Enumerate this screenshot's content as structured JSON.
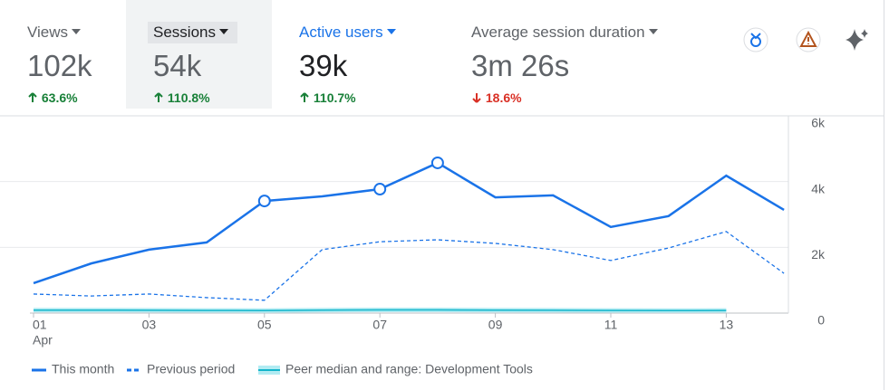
{
  "metrics": [
    {
      "label": "Views",
      "value": "102k",
      "change": "63.6%",
      "direction": "up"
    },
    {
      "label": "Sessions",
      "value": "54k",
      "change": "110.8%",
      "direction": "up"
    },
    {
      "label": "Active users",
      "value": "39k",
      "change": "110.7%",
      "direction": "up"
    },
    {
      "label": "Average session duration",
      "value": "3m 26s",
      "change": "18.6%",
      "direction": "down"
    }
  ],
  "chart_data": {
    "type": "line",
    "categories": [
      "01",
      null,
      "03",
      null,
      "05",
      null,
      "07",
      null,
      "09",
      null,
      "11",
      null,
      "13",
      null
    ],
    "x_sublabel": "Apr",
    "series": [
      {
        "name": "This month",
        "color": "#1a73e8",
        "dash": false,
        "markers": [
          false,
          false,
          false,
          false,
          true,
          false,
          true,
          true,
          false,
          false,
          false,
          false,
          false,
          false
        ],
        "values": [
          910,
          1510,
          1930,
          2150,
          3410,
          3550,
          3770,
          4570,
          3520,
          3580,
          2620,
          2950,
          4180,
          3140
        ]
      },
      {
        "name": "Previous period",
        "color": "#1a73e8",
        "dash": true,
        "values": [
          580,
          520,
          580,
          470,
          390,
          1930,
          2170,
          2230,
          2120,
          1930,
          1600,
          1980,
          2480,
          1210
        ]
      },
      {
        "name": "Peer median and range: Development Tools",
        "color": "#12b5cb",
        "dash": false,
        "band": true,
        "values": [
          90,
          90,
          85,
          80,
          75,
          90,
          95,
          95,
          90,
          85,
          80,
          75,
          80,
          null
        ]
      }
    ],
    "ylim": [
      0,
      6000
    ],
    "yticks": [
      0,
      {
        "value": 2000,
        "label": "2k"
      },
      {
        "value": 4000,
        "label": "4k"
      },
      {
        "value": 6000,
        "label": "6k"
      }
    ],
    "grid": true
  }
}
